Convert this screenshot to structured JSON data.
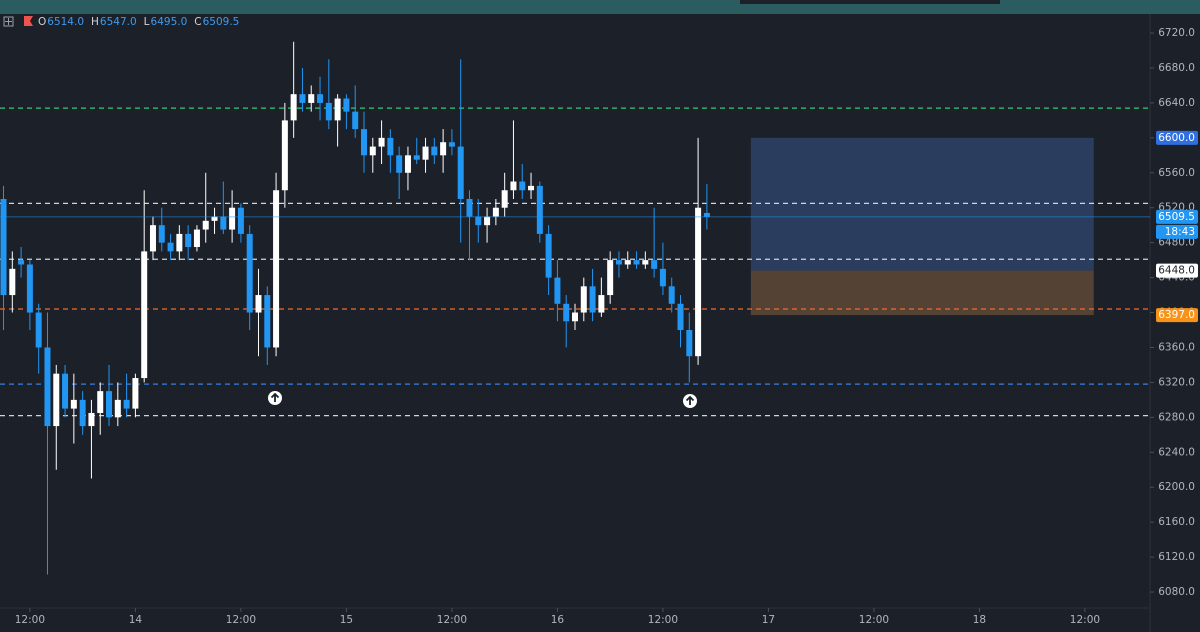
{
  "chart_data": {
    "type": "candlestick",
    "ohlc": [
      {
        "key": "O",
        "text": "6514.0"
      },
      {
        "key": "H",
        "text": "6547.0"
      },
      {
        "key": "L",
        "text": "6495.0"
      },
      {
        "key": "C",
        "text": "6509.5"
      }
    ],
    "x": [
      -15,
      -14,
      -13,
      -12,
      -11,
      -10,
      -9,
      -8,
      -7,
      -6,
      -5,
      -4,
      -3,
      -2,
      -1,
      0,
      1,
      2,
      3,
      4,
      5,
      6,
      7,
      8,
      9,
      10,
      11,
      12,
      13,
      14,
      15,
      16,
      17,
      18,
      19,
      20,
      21,
      22,
      23,
      24,
      25,
      26,
      27,
      28,
      29,
      30,
      31,
      32,
      33,
      34,
      35,
      36,
      37,
      38,
      39,
      40,
      41,
      42,
      43,
      44,
      45,
      46,
      47,
      48,
      49,
      50,
      51,
      52,
      53,
      54,
      55,
      56,
      57,
      58,
      59,
      60,
      61,
      62,
      63,
      64,
      65
    ],
    "open": [
      6530,
      6420,
      6460,
      6455,
      6400,
      6360,
      6270,
      6330,
      6290,
      6300,
      6270,
      6285,
      6310,
      6280,
      6300,
      6290,
      6325,
      6470,
      6500,
      6480,
      6470,
      6490,
      6475,
      6495,
      6505,
      6510,
      6495,
      6520,
      6490,
      6400,
      6420,
      6360,
      6540,
      6620,
      6650,
      6640,
      6650,
      6640,
      6620,
      6645,
      6630,
      6610,
      6580,
      6590,
      6600,
      6580,
      6560,
      6580,
      6575,
      6590,
      6580,
      6595,
      6590,
      6530,
      6510,
      6500,
      6510,
      6520,
      6540,
      6550,
      6540,
      6545,
      6490,
      6440,
      6410,
      6390,
      6400,
      6430,
      6400,
      6420,
      6460,
      6455,
      6460,
      6455,
      6460,
      6450,
      6430,
      6410,
      6380,
      6350,
      6514
    ],
    "high": [
      6545,
      6470,
      6475,
      6460,
      6410,
      6400,
      6340,
      6340,
      6330,
      6310,
      6300,
      6320,
      6340,
      6320,
      6330,
      6330,
      6540,
      6510,
      6520,
      6490,
      6500,
      6500,
      6500,
      6560,
      6520,
      6550,
      6540,
      6525,
      6500,
      6450,
      6430,
      6560,
      6640,
      6710,
      6680,
      6660,
      6670,
      6690,
      6650,
      6650,
      6660,
      6630,
      6600,
      6620,
      6610,
      6590,
      6590,
      6600,
      6600,
      6600,
      6610,
      6610,
      6690,
      6540,
      6530,
      6520,
      6530,
      6560,
      6620,
      6570,
      6560,
      6550,
      6500,
      6460,
      6420,
      6410,
      6440,
      6450,
      6440,
      6470,
      6470,
      6470,
      6470,
      6470,
      6520,
      6480,
      6440,
      6420,
      6400,
      6600,
      6547
    ],
    "low": [
      6380,
      6400,
      6440,
      6380,
      6330,
      6100,
      6220,
      6280,
      6250,
      6260,
      6210,
      6260,
      6270,
      6270,
      6280,
      6280,
      6320,
      6460,
      6470,
      6460,
      6460,
      6460,
      6470,
      6480,
      6490,
      6490,
      6480,
      6480,
      6380,
      6350,
      6340,
      6350,
      6520,
      6600,
      6630,
      6630,
      6620,
      6610,
      6590,
      6610,
      6600,
      6560,
      6560,
      6570,
      6560,
      6530,
      6540,
      6570,
      6560,
      6570,
      6560,
      6580,
      6480,
      6460,
      6480,
      6480,
      6500,
      6510,
      6530,
      6530,
      6530,
      6480,
      6420,
      6390,
      6360,
      6380,
      6390,
      6390,
      6395,
      6410,
      6440,
      6450,
      6450,
      6450,
      6440,
      6420,
      6400,
      6360,
      6320,
      6340,
      6495
    ],
    "close": [
      6420,
      6450,
      6455,
      6400,
      6360,
      6270,
      6330,
      6290,
      6300,
      6270,
      6285,
      6310,
      6280,
      6300,
      6290,
      6325,
      6470,
      6500,
      6480,
      6470,
      6490,
      6475,
      6495,
      6505,
      6510,
      6495,
      6520,
      6490,
      6400,
      6420,
      6360,
      6540,
      6620,
      6650,
      6640,
      6650,
      6640,
      6620,
      6645,
      6630,
      6610,
      6580,
      6590,
      6600,
      6580,
      6560,
      6580,
      6575,
      6590,
      6580,
      6595,
      6590,
      6530,
      6510,
      6500,
      6510,
      6520,
      6540,
      6550,
      6540,
      6545,
      6490,
      6440,
      6410,
      6390,
      6400,
      6430,
      6400,
      6420,
      6460,
      6455,
      6460,
      6455,
      6460,
      6450,
      6430,
      6410,
      6380,
      6350,
      6520,
      6509.5
    ],
    "up_color": "#ffffff",
    "down_color": "#2196f3",
    "xlim": [
      -15.4,
      115.4
    ],
    "xticks": [
      {
        "value": -12,
        "label": "12:00"
      },
      {
        "value": 0,
        "label": "14"
      },
      {
        "value": 12,
        "label": "12:00"
      },
      {
        "value": 24,
        "label": "15"
      },
      {
        "value": 36,
        "label": "12:00"
      },
      {
        "value": 48,
        "label": "16"
      },
      {
        "value": 60,
        "label": "12:00"
      },
      {
        "value": 72,
        "label": "17"
      },
      {
        "value": 84,
        "label": "12:00"
      },
      {
        "value": 96,
        "label": "18"
      },
      {
        "value": 108,
        "label": "12:00"
      }
    ],
    "ylim": [
      6061.7,
      6741.8
    ],
    "yticks": [
      {
        "value": 6080,
        "label": "6080.0"
      },
      {
        "value": 6120,
        "label": "6120.0"
      },
      {
        "value": 6160,
        "label": "6160.0"
      },
      {
        "value": 6200,
        "label": "6200.0"
      },
      {
        "value": 6240,
        "label": "6240.0"
      },
      {
        "value": 6280,
        "label": "6280.0"
      },
      {
        "value": 6320,
        "label": "6320.0"
      },
      {
        "value": 6360,
        "label": "6360.0"
      },
      {
        "value": 6400,
        "label": "6400.0"
      },
      {
        "value": 6440,
        "label": "6440.0"
      },
      {
        "value": 6480,
        "label": "6480.0"
      },
      {
        "value": 6520,
        "label": "6520.0"
      },
      {
        "value": 6560,
        "label": "6560.0"
      },
      {
        "value": 6600,
        "label": "6600.0"
      },
      {
        "value": 6640,
        "label": "6640.0"
      },
      {
        "value": 6680,
        "label": "6680.0"
      },
      {
        "value": 6720,
        "label": "6720.0"
      }
    ],
    "levels": [
      {
        "value": 6634,
        "color": "#2ecc71"
      },
      {
        "value": 6525,
        "color": "#d1d4dc"
      },
      {
        "value": 6461,
        "color": "#d1d4dc"
      },
      {
        "value": 6404,
        "color": "#f26b2a"
      },
      {
        "value": 6318,
        "color": "#3d7fe0"
      },
      {
        "value": 6282,
        "color": "#d1d4dc"
      }
    ],
    "position": {
      "x": [
        70,
        109
      ],
      "target": {
        "value": 6600,
        "label": "6600.0",
        "color": "#2f6fe0"
      },
      "entry": {
        "value": 6448,
        "label": "6448.0",
        "color": "#ffffff"
      },
      "stop": {
        "value": 6397,
        "label": "6397.0",
        "color": "#f7931a"
      },
      "profit_color": "#2a3d5e",
      "loss_color": "#544235"
    },
    "countdown": "18:43"
  }
}
